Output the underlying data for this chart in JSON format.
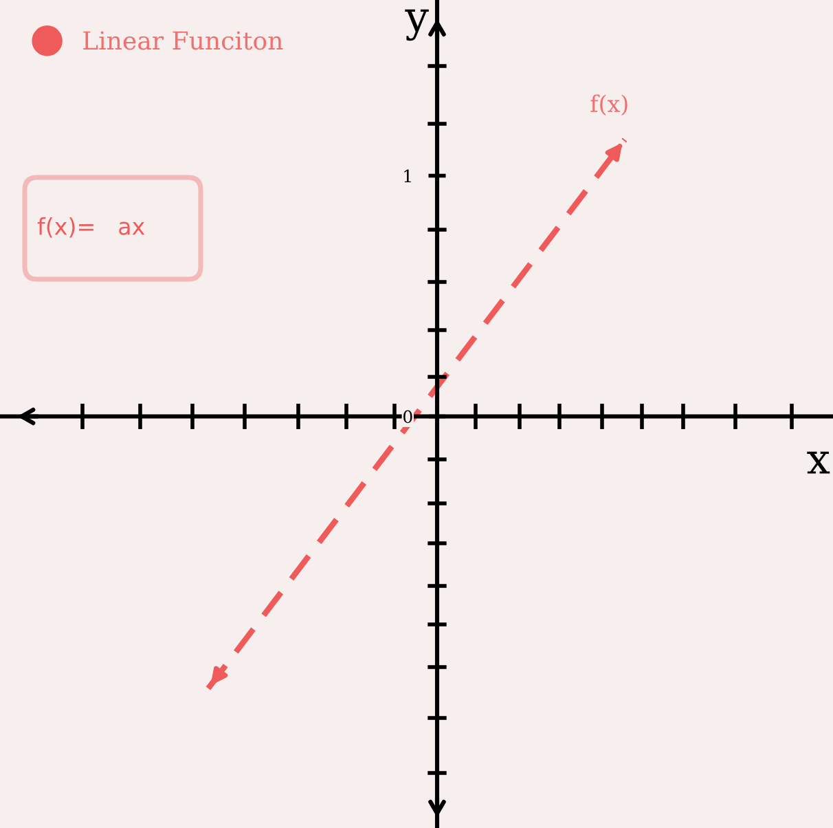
{
  "chart_data": {
    "type": "line",
    "categories": [
      null,
      null
    ],
    "series": [
      {
        "name": "Linear Funciton",
        "color": "#ef5a5a",
        "values": [
          -1.13,
          1.15
        ]
      }
    ],
    "line_style": "dashed",
    "xlabel": "x",
    "ylabel": "y",
    "annotations": [
      "f(x)",
      "f(x)=   ax"
    ],
    "ylim": [
      -1.71,
      1.73
    ],
    "yticks": [
      0,
      1
    ],
    "tick_labels": "y",
    "legend": "top left"
  }
}
